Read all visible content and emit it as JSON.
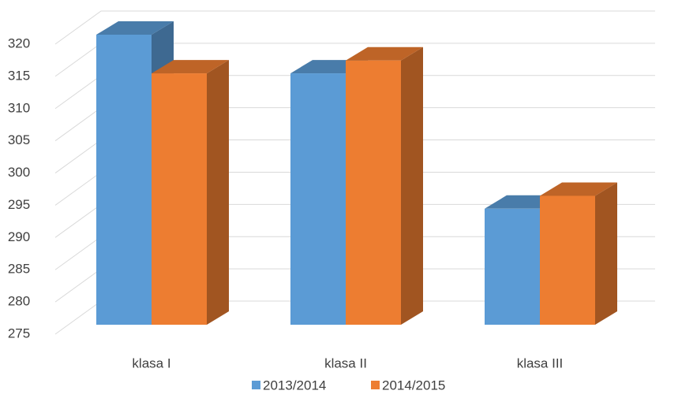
{
  "chart_data": {
    "type": "bar3d",
    "categories": [
      "klasa I",
      "klasa II",
      "klasa III"
    ],
    "series": [
      {
        "name": "2013/2014",
        "color": "#5b9bd5",
        "values": [
          320,
          314,
          293
        ]
      },
      {
        "name": "2014/2015",
        "color": "#ed7d31",
        "values": [
          314,
          316,
          295
        ]
      }
    ],
    "ylim": [
      275,
      320
    ],
    "yticks": [
      275,
      280,
      285,
      290,
      295,
      300,
      305,
      310,
      315,
      320
    ],
    "grid": true,
    "legend": "bottom"
  }
}
